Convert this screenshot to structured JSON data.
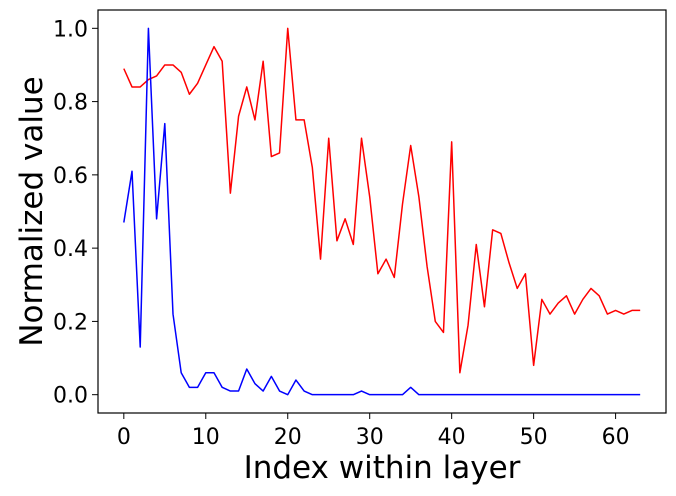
{
  "chart_data": {
    "type": "line",
    "title": "",
    "xlabel": "Index within layer",
    "ylabel": "Normalized value",
    "xlim": [
      -3.15,
      66.15
    ],
    "ylim": [
      -0.05,
      1.05
    ],
    "xticks": [
      0,
      10,
      20,
      30,
      40,
      50,
      60
    ],
    "xtick_labels": [
      "0",
      "10",
      "20",
      "30",
      "40",
      "50",
      "60"
    ],
    "yticks": [
      0.0,
      0.2,
      0.4,
      0.6,
      0.8,
      1.0
    ],
    "ytick_labels": [
      "0.0",
      "0.2",
      "0.4",
      "0.6",
      "0.8",
      "1.0"
    ],
    "grid": false,
    "legend": "none",
    "x": [
      0,
      1,
      2,
      3,
      4,
      5,
      6,
      7,
      8,
      9,
      10,
      11,
      12,
      13,
      14,
      15,
      16,
      17,
      18,
      19,
      20,
      21,
      22,
      23,
      24,
      25,
      26,
      27,
      28,
      29,
      30,
      31,
      32,
      33,
      34,
      35,
      36,
      37,
      38,
      39,
      40,
      41,
      42,
      43,
      44,
      45,
      46,
      47,
      48,
      49,
      50,
      51,
      52,
      53,
      54,
      55,
      56,
      57,
      58,
      59,
      60,
      61,
      62,
      63
    ],
    "series": [
      {
        "color": "#ff0000",
        "values": [
          0.89,
          0.84,
          0.84,
          0.86,
          0.87,
          0.9,
          0.9,
          0.88,
          0.82,
          0.85,
          0.9,
          0.95,
          0.91,
          0.55,
          0.76,
          0.84,
          0.75,
          0.91,
          0.65,
          0.66,
          1.0,
          0.75,
          0.75,
          0.62,
          0.37,
          0.7,
          0.42,
          0.48,
          0.41,
          0.7,
          0.54,
          0.33,
          0.37,
          0.32,
          0.52,
          0.68,
          0.54,
          0.35,
          0.2,
          0.17,
          0.69,
          0.06,
          0.19,
          0.41,
          0.24,
          0.45,
          0.44,
          0.36,
          0.29,
          0.33,
          0.08,
          0.26,
          0.22,
          0.25,
          0.27,
          0.22,
          0.26,
          0.29,
          0.27,
          0.22,
          0.23,
          0.22,
          0.23,
          0.23
        ]
      },
      {
        "color": "#0000ff",
        "values": [
          0.47,
          0.61,
          0.13,
          1.0,
          0.48,
          0.74,
          0.22,
          0.06,
          0.02,
          0.02,
          0.06,
          0.06,
          0.02,
          0.01,
          0.01,
          0.07,
          0.03,
          0.01,
          0.05,
          0.01,
          0.0,
          0.04,
          0.01,
          0.0,
          0.0,
          0.0,
          0.0,
          0.0,
          0.0,
          0.01,
          0.0,
          0.0,
          0.0,
          0.0,
          0.0,
          0.02,
          0.0,
          0.0,
          0.0,
          0.0,
          0.0,
          0.0,
          0.0,
          0.0,
          0.0,
          0.0,
          0.0,
          0.0,
          0.0,
          0.0,
          0.0,
          0.0,
          0.0,
          0.0,
          0.0,
          0.0,
          0.0,
          0.0,
          0.0,
          0.0,
          0.0,
          0.0,
          0.0,
          0.0
        ]
      }
    ]
  }
}
